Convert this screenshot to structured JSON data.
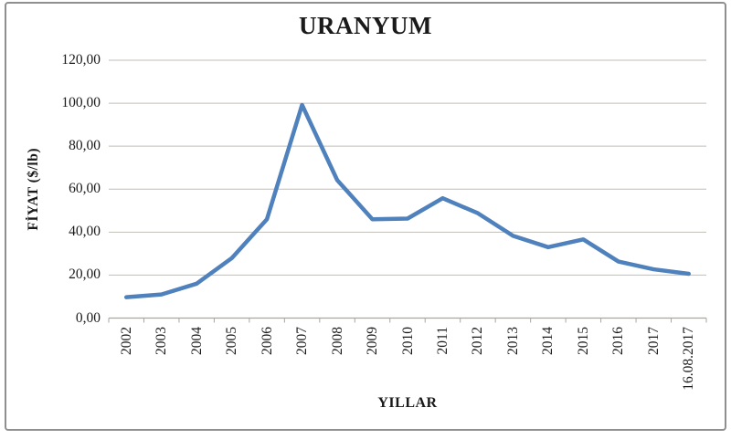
{
  "chart_data": {
    "type": "line",
    "title": "URANYUM",
    "xlabel": "YILLAR",
    "ylabel": "FİYAT ($/lb)",
    "categories": [
      "2002",
      "2003",
      "2004",
      "2005",
      "2006",
      "2007",
      "2008",
      "2009",
      "2010",
      "2011",
      "2012",
      "2013",
      "2014",
      "2015",
      "2016",
      "2017",
      "16.08.2017"
    ],
    "values": [
      9.7,
      11.0,
      16.0,
      27.9,
      46.0,
      99.2,
      64.2,
      46.0,
      46.3,
      55.8,
      48.8,
      38.3,
      33.0,
      36.6,
      26.3,
      22.7,
      20.6
    ],
    "ylim": [
      0,
      120
    ],
    "ytick_step": 20,
    "ytick_labels": [
      "0,00",
      "20,00",
      "40,00",
      "60,00",
      "80,00",
      "100,00",
      "120,00"
    ],
    "number_format": "comma-decimal",
    "grid": "horizontal",
    "legend": "none",
    "colors": {
      "line": "#4F81BD",
      "grid": "#C0BEB8",
      "axis": "#A8A6A0",
      "text": "#1A1A1A",
      "frame": "#8F8F8F",
      "background": "#FFFFFF"
    }
  }
}
